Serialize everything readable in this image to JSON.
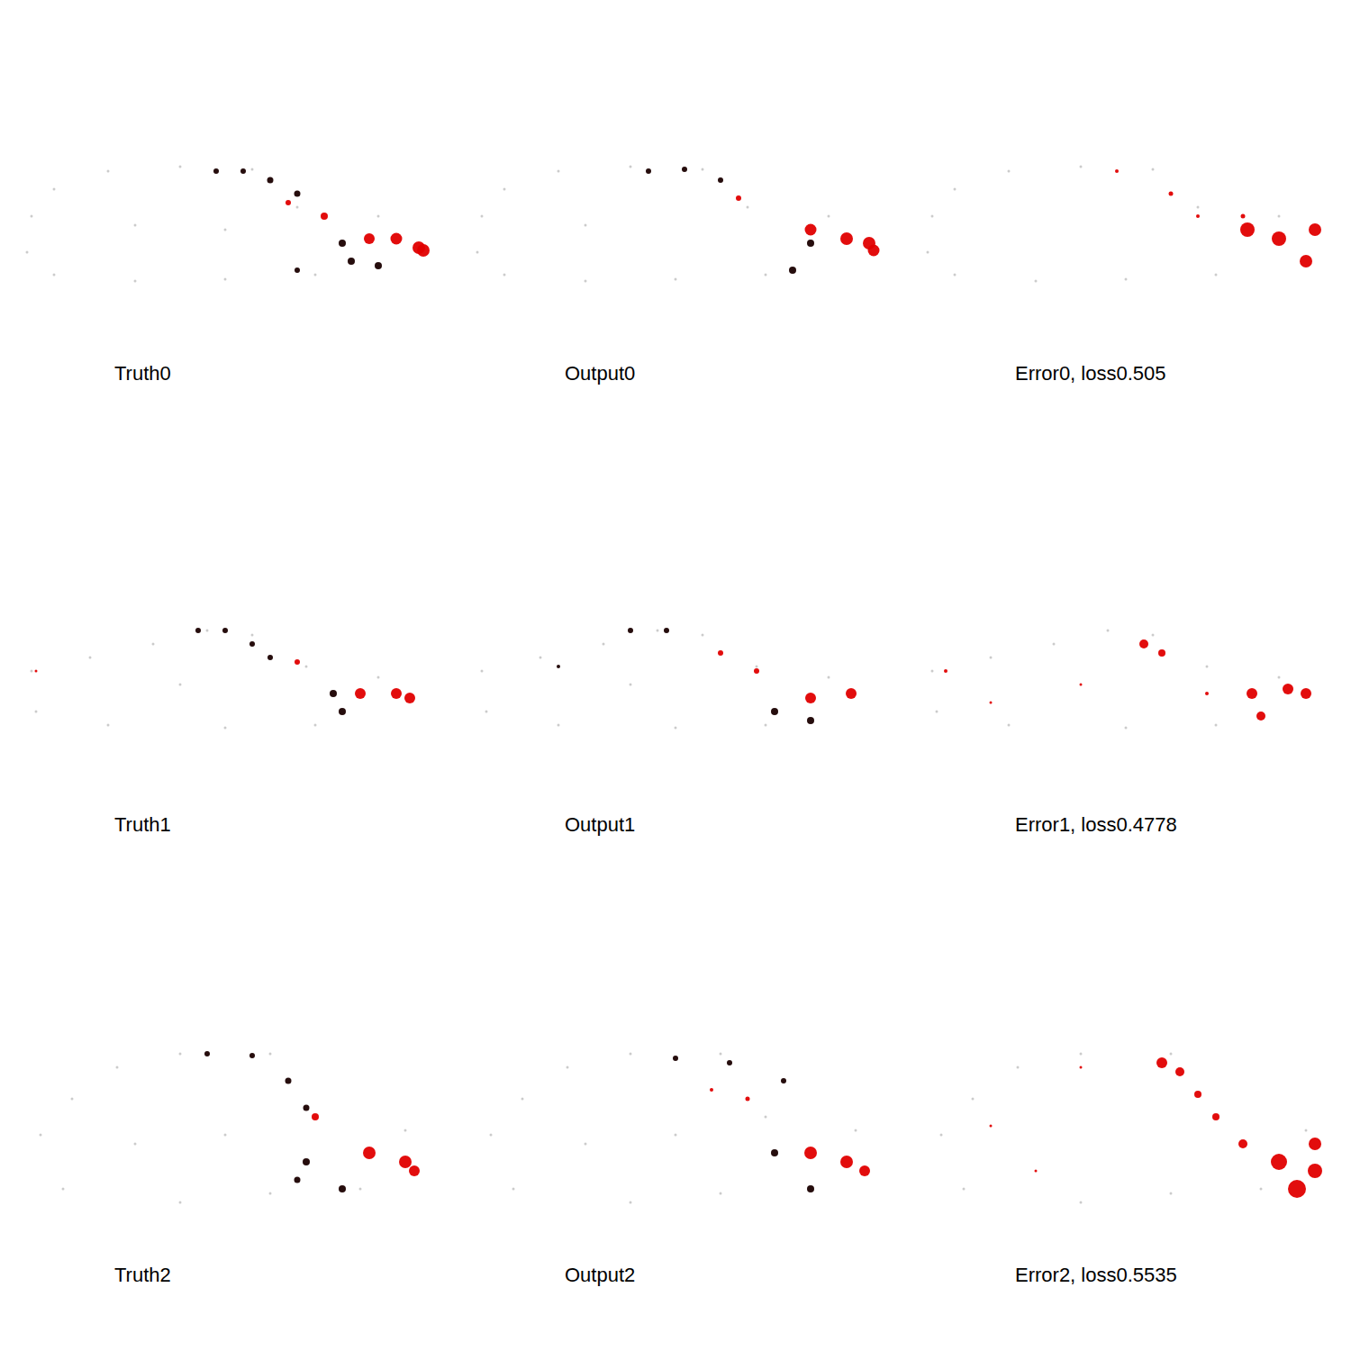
{
  "chart_data": [
    {
      "type": "scatter",
      "title": "Truth0",
      "tick_labels": false,
      "xlim": [
        0,
        460
      ],
      "ylim": [
        0,
        200
      ],
      "x": [
        10,
        35,
        95,
        175,
        255,
        305,
        395,
        5,
        35,
        125,
        225,
        325,
        125,
        225,
        215,
        245,
        275,
        305,
        355,
        365,
        395,
        305,
        295,
        335,
        385,
        415,
        440,
        445
      ],
      "y": [
        110,
        140,
        160,
        165,
        162,
        120,
        110,
        70,
        45,
        38,
        40,
        45,
        100,
        95,
        160,
        160,
        150,
        135,
        80,
        60,
        55,
        50,
        125,
        110,
        85,
        85,
        75,
        72
      ],
      "sizes": [
        3,
        3,
        3,
        3,
        3,
        3,
        3,
        3,
        3,
        3,
        3,
        3,
        3,
        3,
        6,
        6,
        7,
        7,
        8,
        8,
        8,
        6,
        6,
        8,
        12,
        13,
        14,
        14
      ],
      "colors": [
        "#c8c8c8",
        "#c8c8c8",
        "#c8c8c8",
        "#c8c8c8",
        "#c8c8c8",
        "#c8c8c8",
        "#c8c8c8",
        "#c8c8c8",
        "#c8c8c8",
        "#c8c8c8",
        "#c8c8c8",
        "#c8c8c8",
        "#c8c8c8",
        "#c8c8c8",
        "#1a0000",
        "#1a0000",
        "#1a0000",
        "#1a0000",
        "#1a0000",
        "#1a0000",
        "#1a0000",
        "#1a0000",
        "#e00000",
        "#e00000",
        "#e00000",
        "#e00000",
        "#e00000",
        "#e00000"
      ]
    },
    {
      "type": "scatter",
      "title": "Output0",
      "tick_labels": false,
      "xlim": [
        0,
        460
      ],
      "ylim": [
        0,
        200
      ],
      "x": [
        10,
        35,
        95,
        175,
        255,
        305,
        395,
        5,
        35,
        125,
        225,
        325,
        125,
        195,
        235,
        275,
        355,
        375,
        295,
        375,
        415,
        440,
        445
      ],
      "y": [
        110,
        140,
        160,
        165,
        162,
        120,
        110,
        70,
        45,
        38,
        40,
        45,
        100,
        160,
        162,
        150,
        50,
        80,
        130,
        95,
        85,
        80,
        72
      ],
      "sizes": [
        3,
        3,
        3,
        3,
        3,
        3,
        3,
        3,
        3,
        3,
        3,
        3,
        3,
        6,
        6,
        6,
        8,
        8,
        6,
        13,
        14,
        14,
        13
      ],
      "colors": [
        "#c8c8c8",
        "#c8c8c8",
        "#c8c8c8",
        "#c8c8c8",
        "#c8c8c8",
        "#c8c8c8",
        "#c8c8c8",
        "#c8c8c8",
        "#c8c8c8",
        "#c8c8c8",
        "#c8c8c8",
        "#c8c8c8",
        "#c8c8c8",
        "#1a0000",
        "#1a0000",
        "#1a0000",
        "#1a0000",
        "#1a0000",
        "#e00000",
        "#e00000",
        "#e00000",
        "#e00000",
        "#e00000"
      ]
    },
    {
      "type": "scatter",
      "title": "Error0, loss0.505",
      "tick_labels": false,
      "xlim": [
        0,
        460
      ],
      "ylim": [
        0,
        200
      ],
      "x": [
        10,
        35,
        95,
        175,
        255,
        305,
        395,
        5,
        35,
        125,
        225,
        325,
        215,
        275,
        305,
        355,
        360,
        395,
        435,
        425
      ],
      "y": [
        110,
        140,
        160,
        165,
        162,
        120,
        110,
        70,
        45,
        38,
        40,
        45,
        160,
        135,
        110,
        110,
        95,
        85,
        95,
        60
      ],
      "sizes": [
        3,
        3,
        3,
        3,
        3,
        3,
        3,
        3,
        3,
        3,
        3,
        3,
        4,
        5,
        4,
        5,
        16,
        16,
        14,
        14
      ],
      "colors": [
        "#c8c8c8",
        "#c8c8c8",
        "#c8c8c8",
        "#c8c8c8",
        "#c8c8c8",
        "#c8c8c8",
        "#c8c8c8",
        "#c8c8c8",
        "#c8c8c8",
        "#c8c8c8",
        "#c8c8c8",
        "#c8c8c8",
        "#e00000",
        "#e00000",
        "#e00000",
        "#e00000",
        "#e00000",
        "#e00000",
        "#e00000",
        "#e00000"
      ]
    },
    {
      "type": "scatter",
      "title": "Truth1",
      "tick_labels": false,
      "xlim": [
        0,
        460
      ],
      "ylim": [
        0,
        200
      ],
      "x": [
        10,
        75,
        145,
        205,
        255,
        315,
        395,
        15,
        95,
        225,
        325,
        175,
        195,
        225,
        255,
        275,
        345,
        355,
        305,
        375,
        415,
        430,
        15
      ],
      "y": [
        107,
        122,
        137,
        152,
        147,
        112,
        100,
        62,
        47,
        44,
        47,
        92,
        152,
        152,
        137,
        122,
        82,
        62,
        117,
        82,
        82,
        77,
        107
      ],
      "sizes": [
        3,
        3,
        3,
        3,
        3,
        3,
        3,
        3,
        3,
        3,
        3,
        3,
        6,
        6,
        6,
        6,
        8,
        8,
        6,
        12,
        12,
        12,
        3
      ],
      "colors": [
        "#c8c8c8",
        "#c8c8c8",
        "#c8c8c8",
        "#c8c8c8",
        "#c8c8c8",
        "#c8c8c8",
        "#c8c8c8",
        "#c8c8c8",
        "#c8c8c8",
        "#c8c8c8",
        "#c8c8c8",
        "#c8c8c8",
        "#1a0000",
        "#1a0000",
        "#1a0000",
        "#1a0000",
        "#1a0000",
        "#1a0000",
        "#e00000",
        "#e00000",
        "#e00000",
        "#e00000",
        "#e00000"
      ]
    },
    {
      "type": "scatter",
      "title": "Output1",
      "tick_labels": false,
      "xlim": [
        0,
        460
      ],
      "ylim": [
        0,
        200
      ],
      "x": [
        10,
        75,
        145,
        205,
        255,
        315,
        395,
        15,
        95,
        225,
        325,
        175,
        175,
        215,
        95,
        335,
        375,
        275,
        315,
        375,
        420
      ],
      "y": [
        107,
        122,
        137,
        152,
        147,
        112,
        100,
        62,
        47,
        44,
        47,
        92,
        152,
        152,
        112,
        62,
        52,
        127,
        107,
        77,
        82
      ],
      "sizes": [
        3,
        3,
        3,
        3,
        3,
        3,
        3,
        3,
        3,
        3,
        3,
        3,
        6,
        6,
        4,
        8,
        8,
        6,
        6,
        12,
        12
      ],
      "colors": [
        "#c8c8c8",
        "#c8c8c8",
        "#c8c8c8",
        "#c8c8c8",
        "#c8c8c8",
        "#c8c8c8",
        "#c8c8c8",
        "#c8c8c8",
        "#c8c8c8",
        "#c8c8c8",
        "#c8c8c8",
        "#c8c8c8",
        "#1a0000",
        "#1a0000",
        "#1a0000",
        "#1a0000",
        "#1a0000",
        "#e00000",
        "#e00000",
        "#e00000",
        "#e00000"
      ]
    },
    {
      "type": "scatter",
      "title": "Error1, loss0.4778",
      "tick_labels": false,
      "xlim": [
        0,
        460
      ],
      "ylim": [
        0,
        200
      ],
      "x": [
        10,
        75,
        145,
        205,
        255,
        315,
        395,
        15,
        95,
        225,
        325,
        245,
        265,
        365,
        405,
        425,
        375,
        25,
        75,
        175,
        315
      ],
      "y": [
        107,
        122,
        137,
        152,
        147,
        112,
        100,
        62,
        47,
        44,
        47,
        137,
        127,
        82,
        87,
        82,
        57,
        107,
        72,
        92,
        82
      ],
      "sizes": [
        3,
        3,
        3,
        3,
        3,
        3,
        3,
        3,
        3,
        3,
        3,
        10,
        8,
        12,
        12,
        12,
        10,
        4,
        3,
        3,
        4
      ],
      "colors": [
        "#c8c8c8",
        "#c8c8c8",
        "#c8c8c8",
        "#c8c8c8",
        "#c8c8c8",
        "#c8c8c8",
        "#c8c8c8",
        "#c8c8c8",
        "#c8c8c8",
        "#c8c8c8",
        "#c8c8c8",
        "#e00000",
        "#e00000",
        "#e00000",
        "#e00000",
        "#e00000",
        "#e00000",
        "#e00000",
        "#e00000",
        "#e00000",
        "#e00000"
      ]
    },
    {
      "type": "scatter",
      "title": "Truth2",
      "tick_labels": false,
      "xlim": [
        0,
        460
      ],
      "ylim": [
        0,
        200
      ],
      "x": [
        20,
        55,
        105,
        175,
        275,
        325,
        425,
        45,
        175,
        275,
        375,
        125,
        225,
        205,
        255,
        295,
        315,
        315,
        355,
        305,
        325,
        385,
        425,
        435
      ],
      "y": [
        90,
        130,
        165,
        180,
        180,
        110,
        95,
        30,
        15,
        25,
        30,
        80,
        90,
        180,
        178,
        150,
        120,
        60,
        30,
        40,
        110,
        70,
        60,
        50
      ],
      "sizes": [
        3,
        3,
        3,
        3,
        3,
        3,
        3,
        3,
        3,
        3,
        3,
        3,
        3,
        6,
        6,
        7,
        7,
        8,
        8,
        7,
        8,
        14,
        14,
        12
      ],
      "colors": [
        "#c8c8c8",
        "#c8c8c8",
        "#c8c8c8",
        "#c8c8c8",
        "#c8c8c8",
        "#c8c8c8",
        "#c8c8c8",
        "#c8c8c8",
        "#c8c8c8",
        "#c8c8c8",
        "#c8c8c8",
        "#c8c8c8",
        "#c8c8c8",
        "#1a0000",
        "#1a0000",
        "#1a0000",
        "#1a0000",
        "#1a0000",
        "#1a0000",
        "#1a0000",
        "#e00000",
        "#e00000",
        "#e00000",
        "#e00000"
      ]
    },
    {
      "type": "scatter",
      "title": "Output2",
      "tick_labels": false,
      "xlim": [
        0,
        460
      ],
      "ylim": [
        0,
        200
      ],
      "x": [
        20,
        55,
        105,
        175,
        275,
        325,
        425,
        45,
        175,
        275,
        375,
        125,
        225,
        225,
        285,
        345,
        335,
        375,
        305,
        375,
        415,
        435,
        265
      ],
      "y": [
        90,
        130,
        165,
        180,
        180,
        110,
        95,
        30,
        15,
        25,
        30,
        80,
        90,
        175,
        170,
        150,
        70,
        30,
        130,
        70,
        60,
        50,
        140
      ],
      "sizes": [
        3,
        3,
        3,
        3,
        3,
        3,
        3,
        3,
        3,
        3,
        3,
        3,
        3,
        6,
        6,
        6,
        8,
        8,
        5,
        14,
        14,
        12,
        4
      ],
      "colors": [
        "#c8c8c8",
        "#c8c8c8",
        "#c8c8c8",
        "#c8c8c8",
        "#c8c8c8",
        "#c8c8c8",
        "#c8c8c8",
        "#c8c8c8",
        "#c8c8c8",
        "#c8c8c8",
        "#c8c8c8",
        "#c8c8c8",
        "#c8c8c8",
        "#1a0000",
        "#1a0000",
        "#1a0000",
        "#1a0000",
        "#1a0000",
        "#e00000",
        "#e00000",
        "#e00000",
        "#e00000",
        "#e00000"
      ]
    },
    {
      "type": "scatter",
      "title": "Error2, loss0.5535",
      "tick_labels": false,
      "xlim": [
        0,
        460
      ],
      "ylim": [
        0,
        200
      ],
      "x": [
        20,
        55,
        105,
        175,
        275,
        325,
        425,
        45,
        175,
        275,
        375,
        265,
        285,
        305,
        325,
        355,
        395,
        415,
        435,
        435,
        175,
        75,
        125
      ],
      "y": [
        90,
        130,
        165,
        180,
        180,
        110,
        95,
        30,
        15,
        25,
        30,
        170,
        160,
        135,
        110,
        80,
        60,
        30,
        50,
        80,
        165,
        100,
        50
      ],
      "sizes": [
        3,
        3,
        3,
        3,
        3,
        3,
        3,
        3,
        3,
        3,
        3,
        12,
        10,
        8,
        8,
        10,
        18,
        20,
        16,
        14,
        3,
        3,
        3
      ],
      "colors": [
        "#c8c8c8",
        "#c8c8c8",
        "#c8c8c8",
        "#c8c8c8",
        "#c8c8c8",
        "#c8c8c8",
        "#c8c8c8",
        "#c8c8c8",
        "#c8c8c8",
        "#c8c8c8",
        "#c8c8c8",
        "#e00000",
        "#e00000",
        "#e00000",
        "#e00000",
        "#e00000",
        "#e00000",
        "#e00000",
        "#e00000",
        "#e00000",
        "#e00000",
        "#e00000",
        "#e00000"
      ]
    }
  ]
}
